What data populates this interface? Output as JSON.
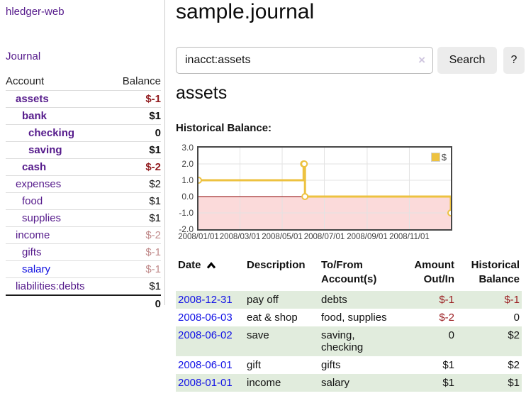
{
  "sidebar": {
    "app_title": "hledger-web",
    "journal_label": "Journal",
    "accounts_table": {
      "headers": {
        "account": "Account",
        "balance": "Balance"
      },
      "rows": [
        {
          "name": "assets",
          "balance": "$-1",
          "indent": 0,
          "current": true,
          "balance_style": "neg-dark"
        },
        {
          "name": "bank",
          "balance": "$1",
          "indent": 1,
          "current": true,
          "balance_style": "pos"
        },
        {
          "name": "checking",
          "balance": "0",
          "indent": 2,
          "current": true,
          "balance_style": "pos"
        },
        {
          "name": "saving",
          "balance": "$1",
          "indent": 2,
          "current": true,
          "balance_style": "pos"
        },
        {
          "name": "cash",
          "balance": "$-2",
          "indent": 1,
          "current": true,
          "balance_style": "neg-dark"
        },
        {
          "name": "expenses",
          "balance": "$2",
          "indent": 0,
          "current": false,
          "balance_style": "pos"
        },
        {
          "name": "food",
          "balance": "$1",
          "indent": 1,
          "current": false,
          "balance_style": "pos"
        },
        {
          "name": "supplies",
          "balance": "$1",
          "indent": 1,
          "current": false,
          "balance_style": "pos"
        },
        {
          "name": "income",
          "balance": "$-2",
          "indent": 0,
          "current": false,
          "balance_style": "neg-light"
        },
        {
          "name": "gifts",
          "balance": "$-1",
          "indent": 1,
          "current": false,
          "balance_style": "neg-light"
        },
        {
          "name": "salary",
          "balance": "$-1",
          "indent": 1,
          "current": false,
          "balance_style": "neg-light",
          "link_color": "blue"
        },
        {
          "name": "liabilities:debts",
          "balance": "$1",
          "indent": 0,
          "current": false,
          "balance_style": "pos"
        }
      ],
      "total": "0"
    }
  },
  "main": {
    "title": "sample.journal",
    "search": {
      "value": "inacct:assets",
      "clear_icon": "×",
      "button_label": "Search",
      "help_label": "?"
    },
    "account_heading": "assets",
    "chart_label": "Historical Balance:"
  },
  "chart_data": {
    "type": "line",
    "style": "step",
    "title": "Historical Balance:",
    "x_range": [
      "2008-01-01",
      "2008-12-31"
    ],
    "y_range": [
      -2.0,
      3.0
    ],
    "y_ticks": [
      3.0,
      2.0,
      1.0,
      0.0,
      -1.0,
      -2.0
    ],
    "x_ticks": [
      {
        "date": "2008-01-01",
        "label": "2008/01/01"
      },
      {
        "date": "2008-03-01",
        "label": "2008/03/01"
      },
      {
        "date": "2008-05-01",
        "label": "2008/05/01"
      },
      {
        "date": "2008-07-01",
        "label": "2008/07/01"
      },
      {
        "date": "2008-09-01",
        "label": "2008/09/01"
      },
      {
        "date": "2008-11-01",
        "label": "2008/11/01"
      }
    ],
    "series": [
      {
        "name": "$",
        "color": "#edc240",
        "points": [
          {
            "date": "2008-01-01",
            "value": 1
          },
          {
            "date": "2008-06-01",
            "value": 2
          },
          {
            "date": "2008-06-02",
            "value": 2
          },
          {
            "date": "2008-06-03",
            "value": 0
          },
          {
            "date": "2008-12-31",
            "value": -1
          }
        ]
      }
    ],
    "legend": {
      "label": "$",
      "position": "top-right"
    },
    "grid": true,
    "negative_region_color": "#fbdada",
    "zero_line_color": "#8b0000"
  },
  "transactions": {
    "headers": {
      "date": "Date",
      "description": "Description",
      "accounts": "To/From Account(s)",
      "amount": "Amount Out/In",
      "balance": "Historical Balance"
    },
    "sort": {
      "column": "date",
      "direction": "ascending"
    },
    "rows": [
      {
        "date": "2008-12-31",
        "description": "pay off",
        "accounts": "debts",
        "amount": "$-1",
        "amount_negative": true,
        "balance": "$-1",
        "balance_negative": true
      },
      {
        "date": "2008-06-03",
        "description": "eat & shop",
        "accounts": "food, supplies",
        "amount": "$-2",
        "amount_negative": true,
        "balance": "0",
        "balance_negative": false
      },
      {
        "date": "2008-06-02",
        "description": "save",
        "accounts": "saving, checking",
        "amount": "0",
        "amount_negative": false,
        "balance": "$2",
        "balance_negative": false
      },
      {
        "date": "2008-06-01",
        "description": "gift",
        "accounts": "gifts",
        "amount": "$1",
        "amount_negative": false,
        "balance": "$2",
        "balance_negative": false
      },
      {
        "date": "2008-01-01",
        "description": "income",
        "accounts": "salary",
        "amount": "$1",
        "amount_negative": false,
        "balance": "$1",
        "balance_negative": false
      }
    ]
  },
  "colors": {
    "purple_link": "#551a8b",
    "blue_link": "#1212e6",
    "negative_dark": "#911b1e",
    "negative_light": "#c18b8b",
    "stripe_green": "#e1ecdd",
    "chart_line": "#edc240",
    "chart_negative_fill": "#fbdada",
    "chart_zero_line": "#8b0000",
    "chart_border": "#474747",
    "grid_line": "#e3e3e3",
    "axis_text": "#3f3f3f",
    "button_bg": "#ececec",
    "input_border": "#b9b9b9",
    "divider": "#cccccc"
  }
}
